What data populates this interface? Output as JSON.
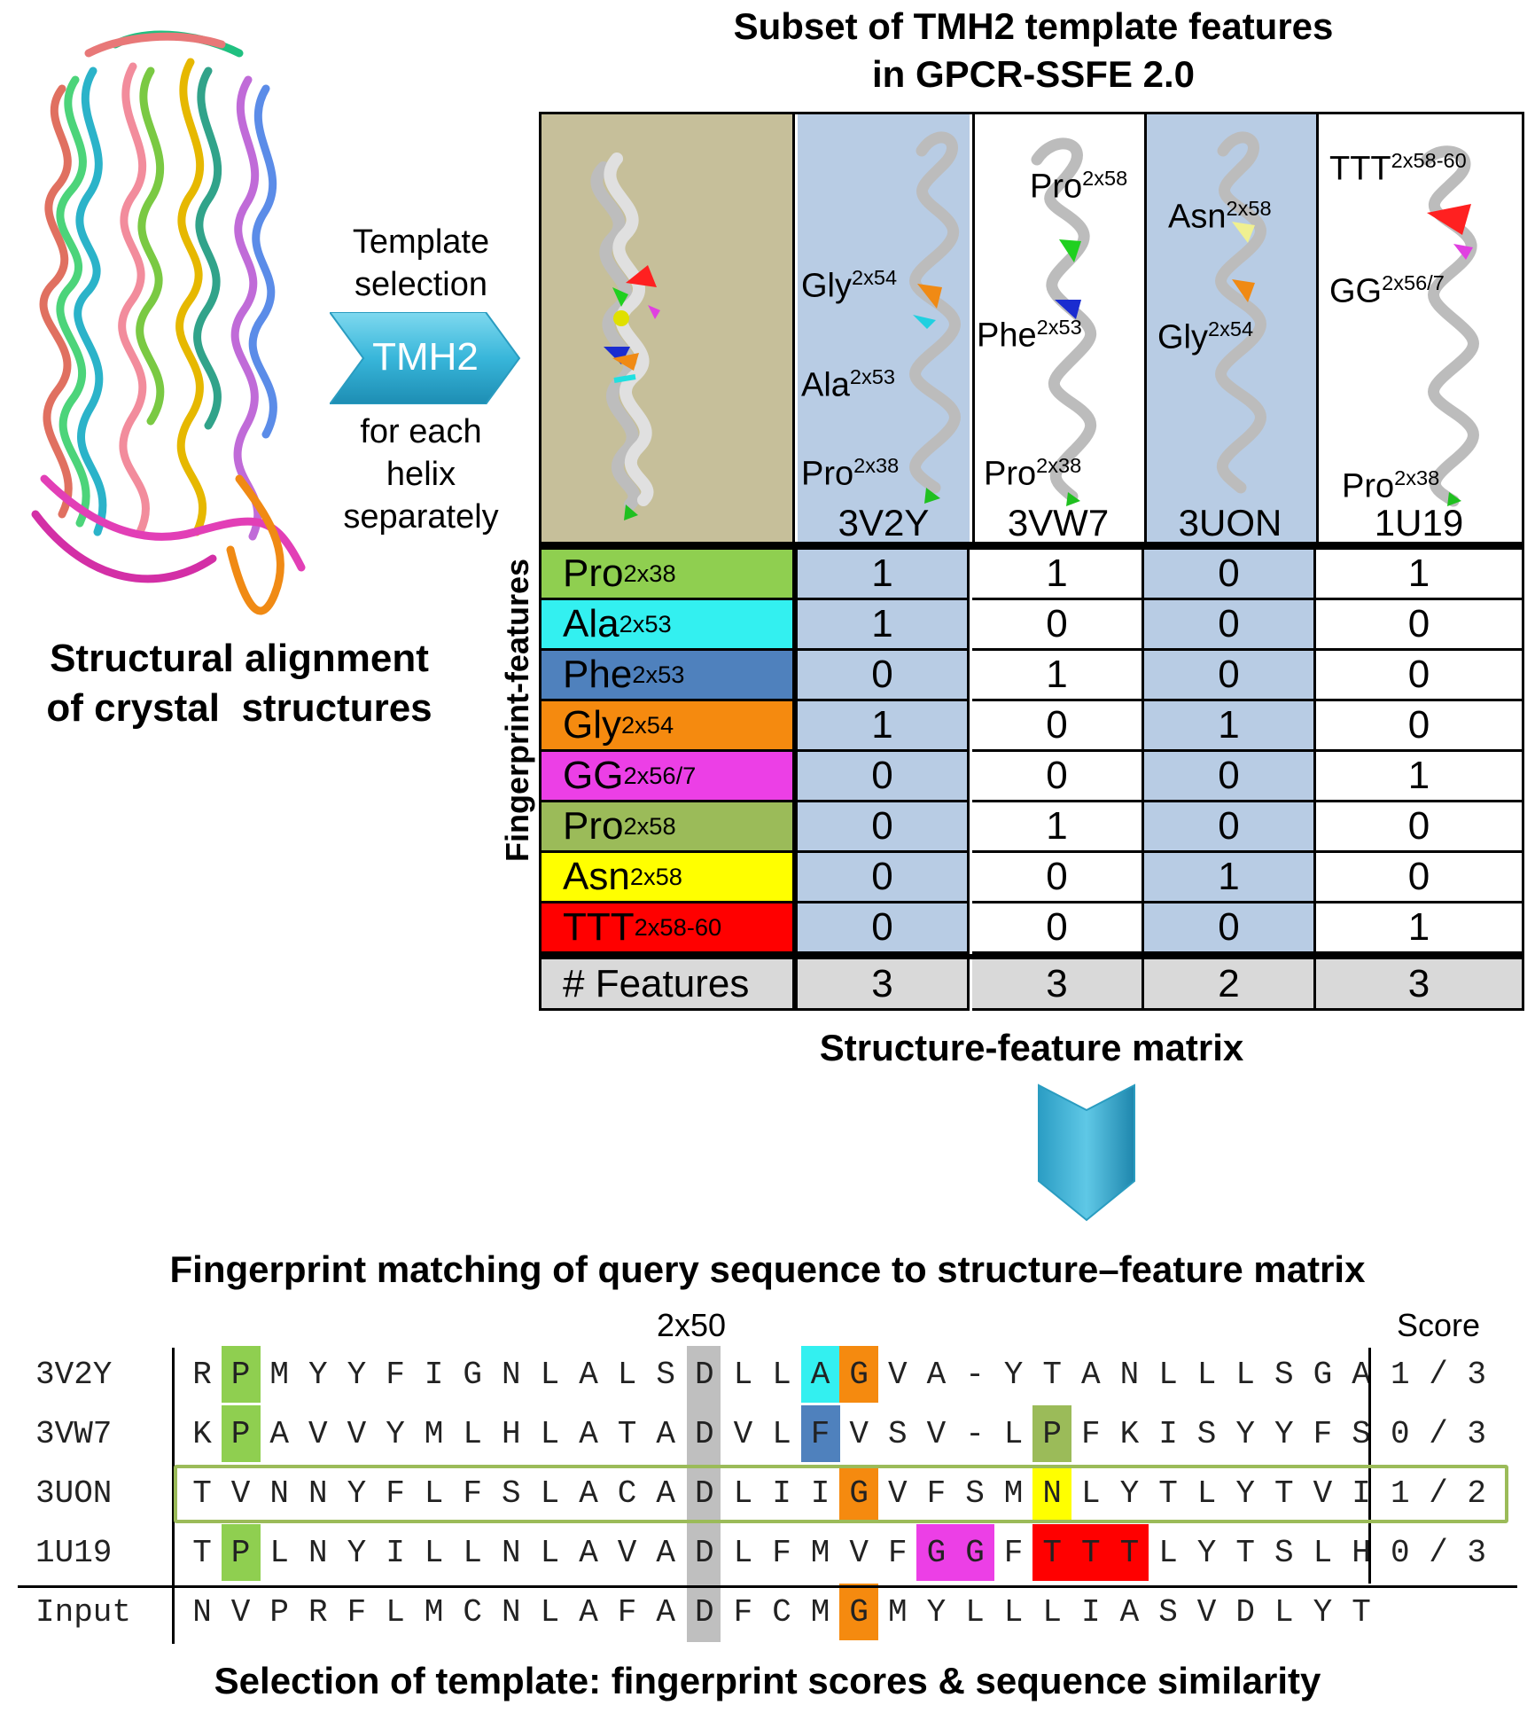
{
  "header": {
    "title_line1": "Subset of TMH2 template features",
    "title_line2": "in GPCR-SSFE 2.0"
  },
  "left_panel": {
    "caption_line1": "Structural alignment",
    "caption_line2": "of crystal  structures",
    "arrow_top_line1": "Template",
    "arrow_top_line2": "selection",
    "arrow_label": "TMH2",
    "arrow_bottom_line1": "for each",
    "arrow_bottom_line2": "helix",
    "arrow_bottom_line3": "separately"
  },
  "structures": [
    {
      "id": "3V2Y",
      "labels": [
        {
          "res": "Gly",
          "pos": "2x54"
        },
        {
          "res": "Ala",
          "pos": "2x53"
        },
        {
          "res": "Pro",
          "pos": "2x38"
        }
      ]
    },
    {
      "id": "3VW7",
      "labels": [
        {
          "res": "Pro",
          "pos": "2x58"
        },
        {
          "res": "Phe",
          "pos": "2x53"
        },
        {
          "res": "Pro",
          "pos": "2x38"
        }
      ]
    },
    {
      "id": "3UON",
      "labels": [
        {
          "res": "Asn",
          "pos": "2x58"
        },
        {
          "res": "Gly",
          "pos": "2x54"
        }
      ]
    },
    {
      "id": "1U19",
      "labels": [
        {
          "res": "TTT",
          "pos": "2x58-60"
        },
        {
          "res": "GG",
          "pos": "2x56/7"
        },
        {
          "res": "Pro",
          "pos": "2x38"
        }
      ]
    }
  ],
  "matrix": {
    "side_label": "Fingerprint-features",
    "caption": "Structure-feature matrix",
    "features": [
      {
        "res": "Pro",
        "pos": "2x38",
        "color": "#8fcf50",
        "values": [
          "1",
          "1",
          "0",
          "1"
        ]
      },
      {
        "res": "Ala",
        "pos": "2x53",
        "color": "#33f0f0",
        "values": [
          "1",
          "0",
          "0",
          "0"
        ]
      },
      {
        "res": "Phe",
        "pos": "2x53",
        "color": "#4f81bd",
        "values": [
          "0",
          "1",
          "0",
          "0"
        ]
      },
      {
        "res": "Gly",
        "pos": "2x54",
        "color": "#f58a0f",
        "values": [
          "1",
          "0",
          "1",
          "0"
        ]
      },
      {
        "res": "GG",
        "pos": "2x56/7",
        "color": "#ec3fe6",
        "values": [
          "0",
          "0",
          "0",
          "1"
        ]
      },
      {
        "res": "Pro",
        "pos": "2x58",
        "color": "#9bbb59",
        "values": [
          "0",
          "1",
          "0",
          "0"
        ]
      },
      {
        "res": "Asn",
        "pos": "2x58",
        "color": "#ffff00",
        "values": [
          "0",
          "0",
          "1",
          "0"
        ]
      },
      {
        "res": "TTT",
        "pos": "2x58-60",
        "color": "#ff0000",
        "values": [
          "0",
          "0",
          "0",
          "1"
        ]
      }
    ],
    "total_label": "# Features",
    "totals": [
      "3",
      "3",
      "2",
      "3"
    ]
  },
  "matching": {
    "title": "Fingerprint matching of query sequence to structure–feature matrix",
    "position_marker": "2x50",
    "score_header": "Score",
    "footer": "Selection of template: fingerprint scores & sequence similarity",
    "rows": [
      {
        "name": "3V2Y",
        "seq": [
          "R",
          "P",
          "M",
          "Y",
          "Y",
          "F",
          "I",
          "G",
          "N",
          "L",
          "A",
          "L",
          "S",
          "D",
          "L",
          "L",
          "A",
          "G",
          "V",
          "A",
          "-",
          "Y",
          "T",
          "A",
          "N",
          "L",
          "L",
          "L",
          "S",
          "G",
          "A"
        ],
        "score": "1 / 3"
      },
      {
        "name": "3VW7",
        "seq": [
          "K",
          "P",
          "A",
          "V",
          "V",
          "Y",
          "M",
          "L",
          "H",
          "L",
          "A",
          "T",
          "A",
          "D",
          "V",
          "L",
          "F",
          "V",
          "S",
          "V",
          "-",
          "L",
          "P",
          "F",
          "K",
          "I",
          "S",
          "Y",
          "Y",
          "F",
          "S"
        ],
        "score": "0 / 3"
      },
      {
        "name": "3UON",
        "seq": [
          "T",
          "V",
          "N",
          "N",
          "Y",
          "F",
          "L",
          "F",
          "S",
          "L",
          "A",
          "C",
          "A",
          "D",
          "L",
          "I",
          "I",
          "G",
          "V",
          "F",
          "S",
          "M",
          "N",
          "L",
          "Y",
          "T",
          "L",
          "Y",
          "T",
          "V",
          "I"
        ],
        "score": "1 / 2"
      },
      {
        "name": "1U19",
        "seq": [
          "T",
          "P",
          "L",
          "N",
          "Y",
          "I",
          "L",
          "L",
          "N",
          "L",
          "A",
          "V",
          "A",
          "D",
          "L",
          "F",
          "M",
          "V",
          "F",
          "G",
          "G",
          "F",
          "T",
          "T",
          "T",
          "L",
          "Y",
          "T",
          "S",
          "L",
          "H"
        ],
        "score": "0 / 3"
      },
      {
        "name": "Input",
        "seq": [
          "N",
          "V",
          "P",
          "R",
          "F",
          "L",
          "M",
          "C",
          "N",
          "L",
          "A",
          "F",
          "A",
          "D",
          "F",
          "C",
          "M",
          "G",
          "M",
          "Y",
          "L",
          "L",
          "L",
          "I",
          "A",
          "S",
          "V",
          "D",
          "L",
          "Y",
          "T"
        ],
        "score": ""
      }
    ]
  }
}
